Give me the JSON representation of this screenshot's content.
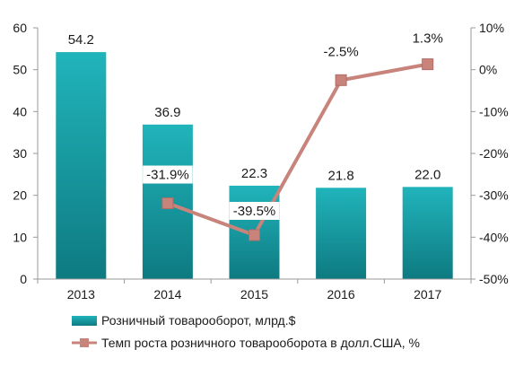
{
  "chart_data": {
    "type": "bar",
    "categories": [
      "2013",
      "2014",
      "2015",
      "2016",
      "2017"
    ],
    "series": [
      {
        "name": "Розничный товарооборот, млрд.$",
        "type": "bar",
        "axis": "left",
        "values": [
          54.2,
          36.9,
          22.3,
          21.8,
          22.0
        ],
        "labels": [
          "54.2",
          "36.9",
          "22.3",
          "21.8",
          "22.0"
        ],
        "color": "#1a9ca3"
      },
      {
        "name": "Темп роста розничного товарооборота в долл.США, %",
        "type": "line",
        "axis": "right",
        "values": [
          null,
          -31.9,
          -39.5,
          -2.5,
          1.3
        ],
        "labels": [
          "",
          "-31.9%",
          "-39.5%",
          "-2.5%",
          "1.3%"
        ],
        "color": "#c8847b"
      }
    ],
    "y_left": {
      "min": 0,
      "max": 60,
      "step": 10,
      "ticks": [
        "0",
        "10",
        "20",
        "30",
        "40",
        "50",
        "60"
      ]
    },
    "y_right": {
      "min": -50,
      "max": 10,
      "step": 10,
      "ticks": [
        "-50%",
        "-40%",
        "-30%",
        "-20%",
        "-10%",
        "0%",
        "10%"
      ]
    },
    "legend_position": "bottom",
    "grid": false
  }
}
